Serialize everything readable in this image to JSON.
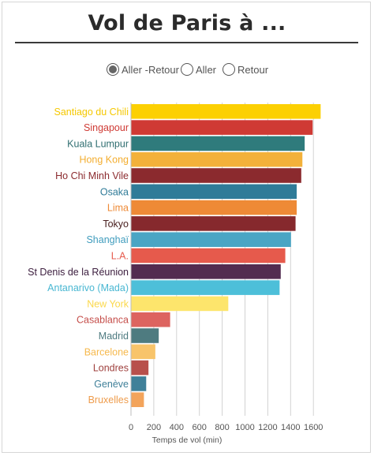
{
  "page": {
    "title": "Vol de Paris à ..."
  },
  "filters": [
    {
      "label": "Aller -Retour",
      "selected": true
    },
    {
      "label": "Aller",
      "selected": false
    },
    {
      "label": "Retour",
      "selected": false
    }
  ],
  "chart_data": {
    "type": "bar",
    "orientation": "horizontal",
    "title": "Vol de Paris à ...",
    "xlabel": "Temps de vol (min)",
    "ylabel": "",
    "xlim": [
      0,
      1700
    ],
    "xticks": [
      0,
      200,
      400,
      600,
      800,
      1000,
      1200,
      1400,
      1600
    ],
    "grid": true,
    "categories": [
      "Santiago du Chili",
      "Singapour",
      "Kuala Lumpur",
      "Hong Kong",
      "Ho Chi Minh Vile",
      "Osaka",
      "Lima",
      "Tokyo",
      "Shanghaï",
      "L.A.",
      "St Denis de la Réunion",
      "Antanarivo (Mada)",
      "New York",
      "Casablanca",
      "Madrid",
      "Barcelone",
      "Londres",
      "Genève",
      "Bruxelles"
    ],
    "values": [
      1660,
      1590,
      1520,
      1500,
      1490,
      1450,
      1450,
      1440,
      1400,
      1350,
      1310,
      1300,
      850,
      340,
      240,
      210,
      150,
      130,
      110
    ],
    "colors": [
      "#fcd002",
      "#cf3a34",
      "#2f7b7c",
      "#f3b13a",
      "#8b2a2e",
      "#2f7b98",
      "#ee8a36",
      "#86292d",
      "#4aa5c4",
      "#e65a4c",
      "#532c50",
      "#4dbfd9",
      "#fde56c",
      "#dd6460",
      "#4e7b80",
      "#f8c46a",
      "#b8504c",
      "#3f8099",
      "#f3a45b"
    ],
    "label_colors": [
      "#f5c800",
      "#cf3a34",
      "#2f6e70",
      "#f3ad2f",
      "#8b2a2e",
      "#2f7b98",
      "#ee8a36",
      "#4a2020",
      "#3f9cbd",
      "#e65a4c",
      "#3e2040",
      "#49b7d2",
      "#fbd84a",
      "#c54e4a",
      "#4e7b80",
      "#f6b94d",
      "#9e3f3c",
      "#3f8099",
      "#ee9c4c"
    ]
  }
}
